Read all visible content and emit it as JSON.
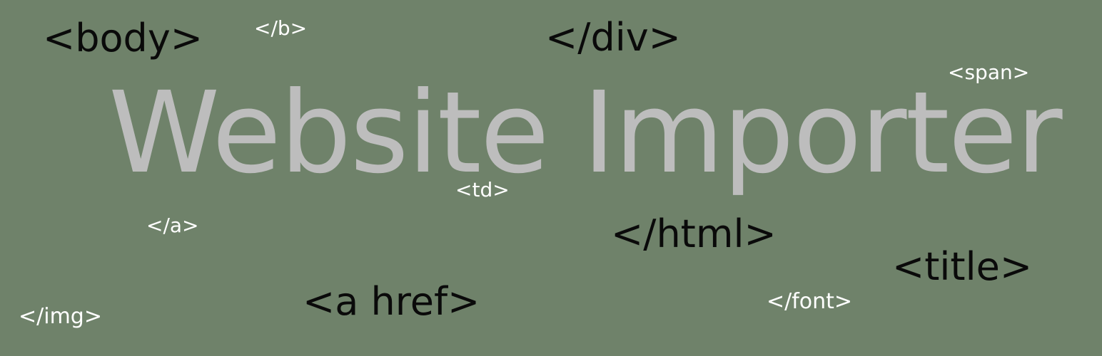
{
  "banner": {
    "title": "Website Importer",
    "background_color": "#6f826a",
    "title_color": "#bdbdbd",
    "tags": {
      "body": "<body>",
      "b_close": "</b>",
      "div_close": "</div>",
      "span": "<span>",
      "td": "<td>",
      "a_close": "</a>",
      "html_close": "</html>",
      "title": "<title>",
      "a_href": "<a href>",
      "font_close": "</font>",
      "img_close": "</img>"
    }
  }
}
